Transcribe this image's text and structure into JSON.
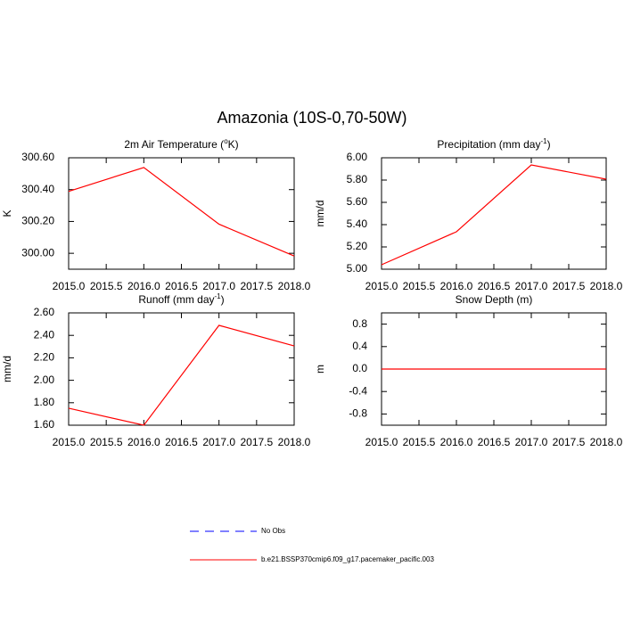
{
  "title": "Amazonia (10S-0,70-50W)",
  "chart_data": [
    {
      "type": "line",
      "title": [
        "2m Air Temperature (",
        "o",
        "K)"
      ],
      "ylabel": "K",
      "x": [
        2015,
        2016,
        2017,
        2018
      ],
      "series": [
        {
          "color": "#ff0000",
          "values": [
            300.389,
            300.539,
            300.183,
            299.983
          ]
        }
      ],
      "xlim": [
        2015,
        2018
      ],
      "xticks": [
        {
          "value": 2015,
          "label": "2015.0"
        },
        2015.5,
        {
          "value": 2016,
          "label": "2016.0"
        },
        2016.5,
        {
          "value": 2017,
          "label": "2017.0"
        },
        2017.5,
        {
          "value": 2018,
          "label": "2018.0"
        }
      ],
      "ylim": [
        299.9,
        300.6
      ],
      "yticks": [
        {
          "value": 300,
          "label": "300.00"
        },
        {
          "value": 300.2,
          "label": "300.20"
        },
        {
          "value": 300.4,
          "label": "300.40"
        },
        {
          "value": 300.6,
          "label": "300.60"
        }
      ]
    },
    {
      "type": "line",
      "title": [
        "Precipitation (mm day",
        "-1",
        ")"
      ],
      "ylabel": "mm/d",
      "x": [
        2015,
        2016,
        2017,
        2018
      ],
      "series": [
        {
          "color": "#ff0000",
          "values": [
            5.04,
            5.336,
            5.936,
            5.808
          ]
        }
      ],
      "xlim": [
        2015,
        2018
      ],
      "xticks": [
        {
          "value": 2015,
          "label": "2015.0"
        },
        2015.5,
        {
          "value": 2016,
          "label": "2016.0"
        },
        2016.5,
        {
          "value": 2017,
          "label": "2017.0"
        },
        2017.5,
        {
          "value": 2018,
          "label": "2018.0"
        }
      ],
      "ylim": [
        5.0,
        6.0
      ],
      "yticks": [
        {
          "value": 5,
          "label": "5.00"
        },
        {
          "value": 5.2,
          "label": "5.20"
        },
        {
          "value": 5.4,
          "label": "5.40"
        },
        {
          "value": 5.6,
          "label": "5.60"
        },
        {
          "value": 5.8,
          "label": "5.80"
        },
        {
          "value": 6,
          "label": "6.00"
        }
      ]
    },
    {
      "type": "line",
      "title": [
        "Runoff (mm day",
        "-1",
        ")"
      ],
      "ylabel": "mm/d",
      "x": [
        2015,
        2016,
        2017,
        2018
      ],
      "series": [
        {
          "color": "#ff0000",
          "values": [
            1.751,
            1.6,
            2.489,
            2.306
          ]
        }
      ],
      "xlim": [
        2015,
        2018
      ],
      "xticks": [
        {
          "value": 2015,
          "label": "2015.0"
        },
        2015.5,
        {
          "value": 2016,
          "label": "2016.0"
        },
        2016.5,
        {
          "value": 2017,
          "label": "2017.0"
        },
        2017.5,
        {
          "value": 2018,
          "label": "2018.0"
        }
      ],
      "ylim": [
        1.6,
        2.6
      ],
      "yticks": [
        {
          "value": 1.6,
          "label": "1.60"
        },
        {
          "value": 1.8,
          "label": "1.80"
        },
        {
          "value": 2,
          "label": "2.00"
        },
        {
          "value": 2.2,
          "label": "2.20"
        },
        {
          "value": 2.4,
          "label": "2.40"
        },
        {
          "value": 2.6,
          "label": "2.60"
        }
      ]
    },
    {
      "type": "line",
      "title": [
        "Snow Depth (m)"
      ],
      "ylabel": "m",
      "x": [
        2015,
        2016,
        2017,
        2018
      ],
      "series": [
        {
          "color": "#ff0000",
          "values": [
            0,
            0,
            0,
            0
          ]
        }
      ],
      "xlim": [
        2015,
        2018
      ],
      "xticks": [
        {
          "value": 2015,
          "label": "2015.0"
        },
        2015.5,
        {
          "value": 2016,
          "label": "2016.0"
        },
        2016.5,
        {
          "value": 2017,
          "label": "2017.0"
        },
        2017.5,
        {
          "value": 2018,
          "label": "2018.0"
        }
      ],
      "ylim": [
        -1,
        1
      ],
      "yticks": [
        -0.8,
        -0.4,
        {
          "value": 0,
          "label": "0.0"
        },
        0.4,
        0.8
      ]
    }
  ],
  "legend": [
    {
      "name": "No Obs",
      "color": "#0000ff",
      "dashed": true
    },
    {
      "name": "b.e21.BSSP370cmip6.f09_g17.pacemaker_pacific.003",
      "color": "#ff0000",
      "dashed": false
    }
  ]
}
